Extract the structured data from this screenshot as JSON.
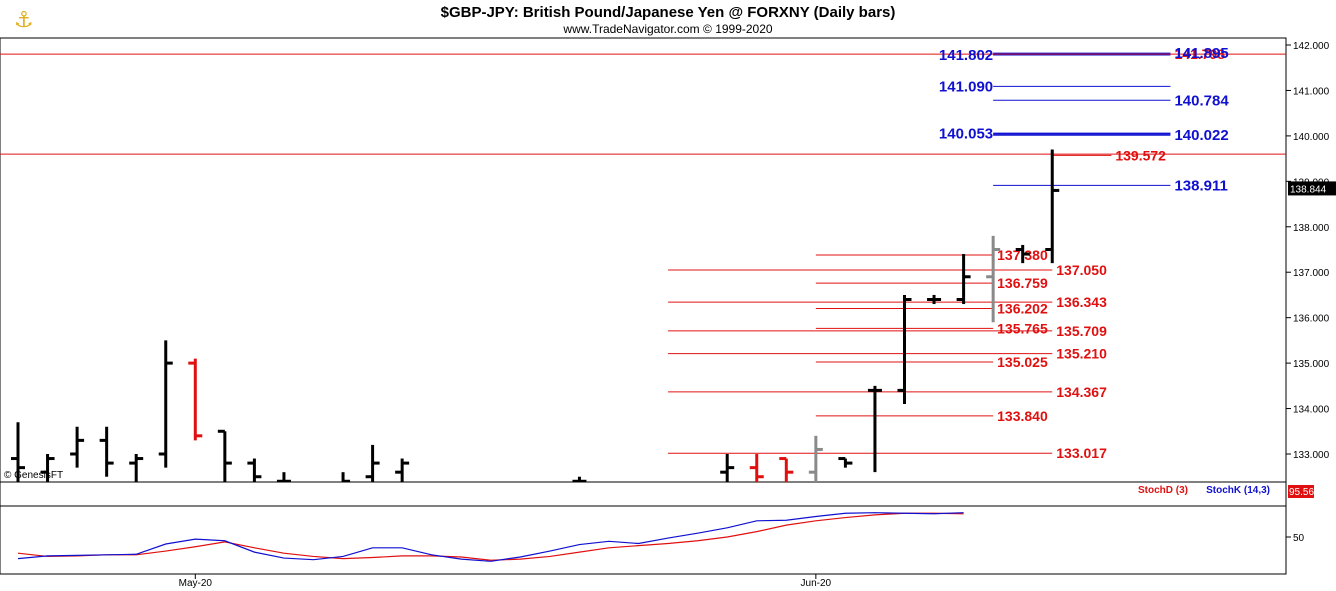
{
  "header": {
    "title": "$GBP-JPY:  British Pound/Japanese Yen @ FORXNY  (Daily bars)",
    "subtitle": "www.TradeNavigator.com © 1999-2020",
    "watermark": "© GenesisFT",
    "logo_icon": "trader-figure-icon"
  },
  "chart_data": [
    {
      "type": "ohlc",
      "ylim": [
        132.5,
        142.2
      ],
      "y_ticks": [
        "142.000",
        "141.000",
        "140.000",
        "139.000",
        "138.000",
        "137.000",
        "136.000",
        "135.000",
        "134.000",
        "133.000"
      ],
      "last_price": "138.844",
      "x_labels": [
        {
          "label": "May-20",
          "day": 6
        },
        {
          "label": "Jun-20",
          "day": 27
        }
      ],
      "bars": [
        {
          "day": 0,
          "open": 132.9,
          "high": 133.7,
          "low": 132.2,
          "close": 132.7,
          "color": "black"
        },
        {
          "day": 1,
          "open": 132.6,
          "high": 133.0,
          "low": 132.3,
          "close": 132.9,
          "color": "black"
        },
        {
          "day": 2,
          "open": 133.0,
          "high": 133.6,
          "low": 132.7,
          "close": 133.3,
          "color": "black"
        },
        {
          "day": 3,
          "open": 133.3,
          "high": 133.6,
          "low": 132.5,
          "close": 132.8,
          "color": "black"
        },
        {
          "day": 4,
          "open": 132.8,
          "high": 133.0,
          "low": 132.2,
          "close": 132.9,
          "color": "black"
        },
        {
          "day": 5,
          "open": 133.0,
          "high": 135.5,
          "low": 132.7,
          "close": 135.0,
          "color": "black"
        },
        {
          "day": 6,
          "open": 135.0,
          "high": 135.1,
          "low": 133.3,
          "close": 133.4,
          "color": "red"
        },
        {
          "day": 7,
          "open": 133.5,
          "high": 133.5,
          "low": 132.3,
          "close": 132.8,
          "color": "black"
        },
        {
          "day": 8,
          "open": 132.8,
          "high": 132.9,
          "low": 132.2,
          "close": 132.5,
          "color": "black"
        },
        {
          "day": 9,
          "open": 132.4,
          "high": 132.6,
          "low": 132.2,
          "close": 132.4,
          "color": "black"
        },
        {
          "day": 11,
          "open": 132.3,
          "high": 132.6,
          "low": 132.2,
          "close": 132.4,
          "color": "black"
        },
        {
          "day": 12,
          "open": 132.5,
          "high": 133.2,
          "low": 132.3,
          "close": 132.8,
          "color": "black"
        },
        {
          "day": 13,
          "open": 132.6,
          "high": 132.9,
          "low": 132.2,
          "close": 132.8,
          "color": "black"
        },
        {
          "day": 19,
          "open": 132.4,
          "high": 132.5,
          "low": 132.2,
          "close": 132.4,
          "color": "black"
        },
        {
          "day": 24,
          "open": 132.6,
          "high": 133.0,
          "low": 132.2,
          "close": 132.7,
          "color": "black"
        },
        {
          "day": 25,
          "open": 132.7,
          "high": 133.0,
          "low": 132.2,
          "close": 132.5,
          "color": "red"
        },
        {
          "day": 26,
          "open": 132.9,
          "high": 132.9,
          "low": 132.3,
          "close": 132.6,
          "color": "red"
        },
        {
          "day": 27,
          "open": 132.6,
          "high": 133.4,
          "low": 132.2,
          "close": 133.1,
          "color": "gray"
        },
        {
          "day": 28,
          "open": 132.9,
          "high": 132.9,
          "low": 132.7,
          "close": 132.8,
          "color": "black"
        },
        {
          "day": 29,
          "open": 134.4,
          "high": 134.5,
          "low": 132.6,
          "close": 134.4,
          "color": "black"
        },
        {
          "day": 30,
          "open": 134.4,
          "high": 136.5,
          "low": 134.1,
          "close": 136.4,
          "color": "black"
        },
        {
          "day": 31,
          "open": 136.4,
          "high": 136.5,
          "low": 136.3,
          "close": 136.4,
          "color": "black"
        },
        {
          "day": 32,
          "open": 136.4,
          "high": 137.4,
          "low": 136.3,
          "close": 136.9,
          "color": "black"
        },
        {
          "day": 33,
          "open": 136.9,
          "high": 137.8,
          "low": 135.9,
          "close": 137.5,
          "color": "gray"
        },
        {
          "day": 34,
          "open": 137.5,
          "high": 137.6,
          "low": 137.2,
          "close": 137.4,
          "color": "black"
        },
        {
          "day": 35,
          "open": 137.5,
          "high": 139.7,
          "low": 137.2,
          "close": 138.8,
          "color": "black"
        }
      ],
      "horizontal_lines": [
        {
          "price": 141.8,
          "color": "red",
          "span": "full"
        },
        {
          "price": 139.6,
          "color": "red",
          "span": "full"
        }
      ],
      "levels_red": [
        {
          "label": "139.572",
          "price": 139.572,
          "from_day": 35,
          "to_day": 37
        },
        {
          "label": "137.380",
          "price": 137.38,
          "from_day": 27,
          "to_day": 33
        },
        {
          "label": "137.050",
          "price": 137.05,
          "from_day": 22,
          "to_day": 35
        },
        {
          "label": "136.759",
          "price": 136.759,
          "from_day": 27,
          "to_day": 33
        },
        {
          "label": "136.343",
          "price": 136.343,
          "from_day": 22,
          "to_day": 35
        },
        {
          "label": "136.202",
          "price": 136.202,
          "from_day": 27,
          "to_day": 33
        },
        {
          "label": "135.765",
          "price": 135.765,
          "from_day": 27,
          "to_day": 33
        },
        {
          "label": "135.709",
          "price": 135.709,
          "from_day": 22,
          "to_day": 35
        },
        {
          "label": "135.210",
          "price": 135.21,
          "from_day": 22,
          "to_day": 35
        },
        {
          "label": "135.025",
          "price": 135.025,
          "from_day": 27,
          "to_day": 33
        },
        {
          "label": "134.367",
          "price": 134.367,
          "from_day": 22,
          "to_day": 35
        },
        {
          "label": "133.840",
          "price": 133.84,
          "from_day": 27,
          "to_day": 33
        },
        {
          "label": "133.017",
          "price": 133.017,
          "from_day": 22,
          "to_day": 35
        },
        {
          "label": "141.798",
          "price": 141.798,
          "from_day": 33,
          "to_day": 39
        }
      ],
      "levels_blue": [
        {
          "label": "141.895",
          "price": 141.82,
          "from_day": 33,
          "to_day": 39,
          "side": "right"
        },
        {
          "label": "141.802",
          "price": 141.78,
          "from_day": 33,
          "to_day": 39,
          "side": "left"
        },
        {
          "label": "141.090",
          "price": 141.09,
          "from_day": 33,
          "to_day": 39,
          "side": "left"
        },
        {
          "label": "140.784",
          "price": 140.784,
          "from_day": 33,
          "to_day": 39,
          "side": "right"
        },
        {
          "label": "140.053",
          "price": 140.053,
          "from_day": 33,
          "to_day": 39,
          "side": "left"
        },
        {
          "label": "140.022",
          "price": 140.022,
          "from_day": 33,
          "to_day": 39,
          "side": "right"
        },
        {
          "label": "138.911",
          "price": 138.911,
          "from_day": 33,
          "to_day": 39,
          "side": "right"
        }
      ]
    },
    {
      "type": "line",
      "ylim": [
        0,
        100
      ],
      "y_ticks": [
        "50"
      ],
      "last_value": "95.56",
      "series": [
        {
          "name": "StochD (3)",
          "color": "#e01010",
          "values": [
            20,
            14,
            15,
            17,
            17,
            24,
            32,
            41,
            30,
            20,
            14,
            10,
            12,
            15,
            15,
            13,
            7,
            9,
            14,
            22,
            30,
            34,
            38,
            43,
            50,
            60,
            72,
            80,
            86,
            91,
            94,
            94,
            93
          ]
        },
        {
          "name": "StochK (14,3)",
          "color": "#1010d0",
          "values": [
            10,
            15,
            16,
            17,
            18,
            37,
            46,
            43,
            22,
            11,
            8,
            14,
            30,
            30,
            17,
            9,
            5,
            13,
            24,
            36,
            42,
            38,
            48,
            57,
            67,
            80,
            81,
            88,
            94,
            95,
            94,
            93,
            95
          ]
        }
      ]
    }
  ]
}
